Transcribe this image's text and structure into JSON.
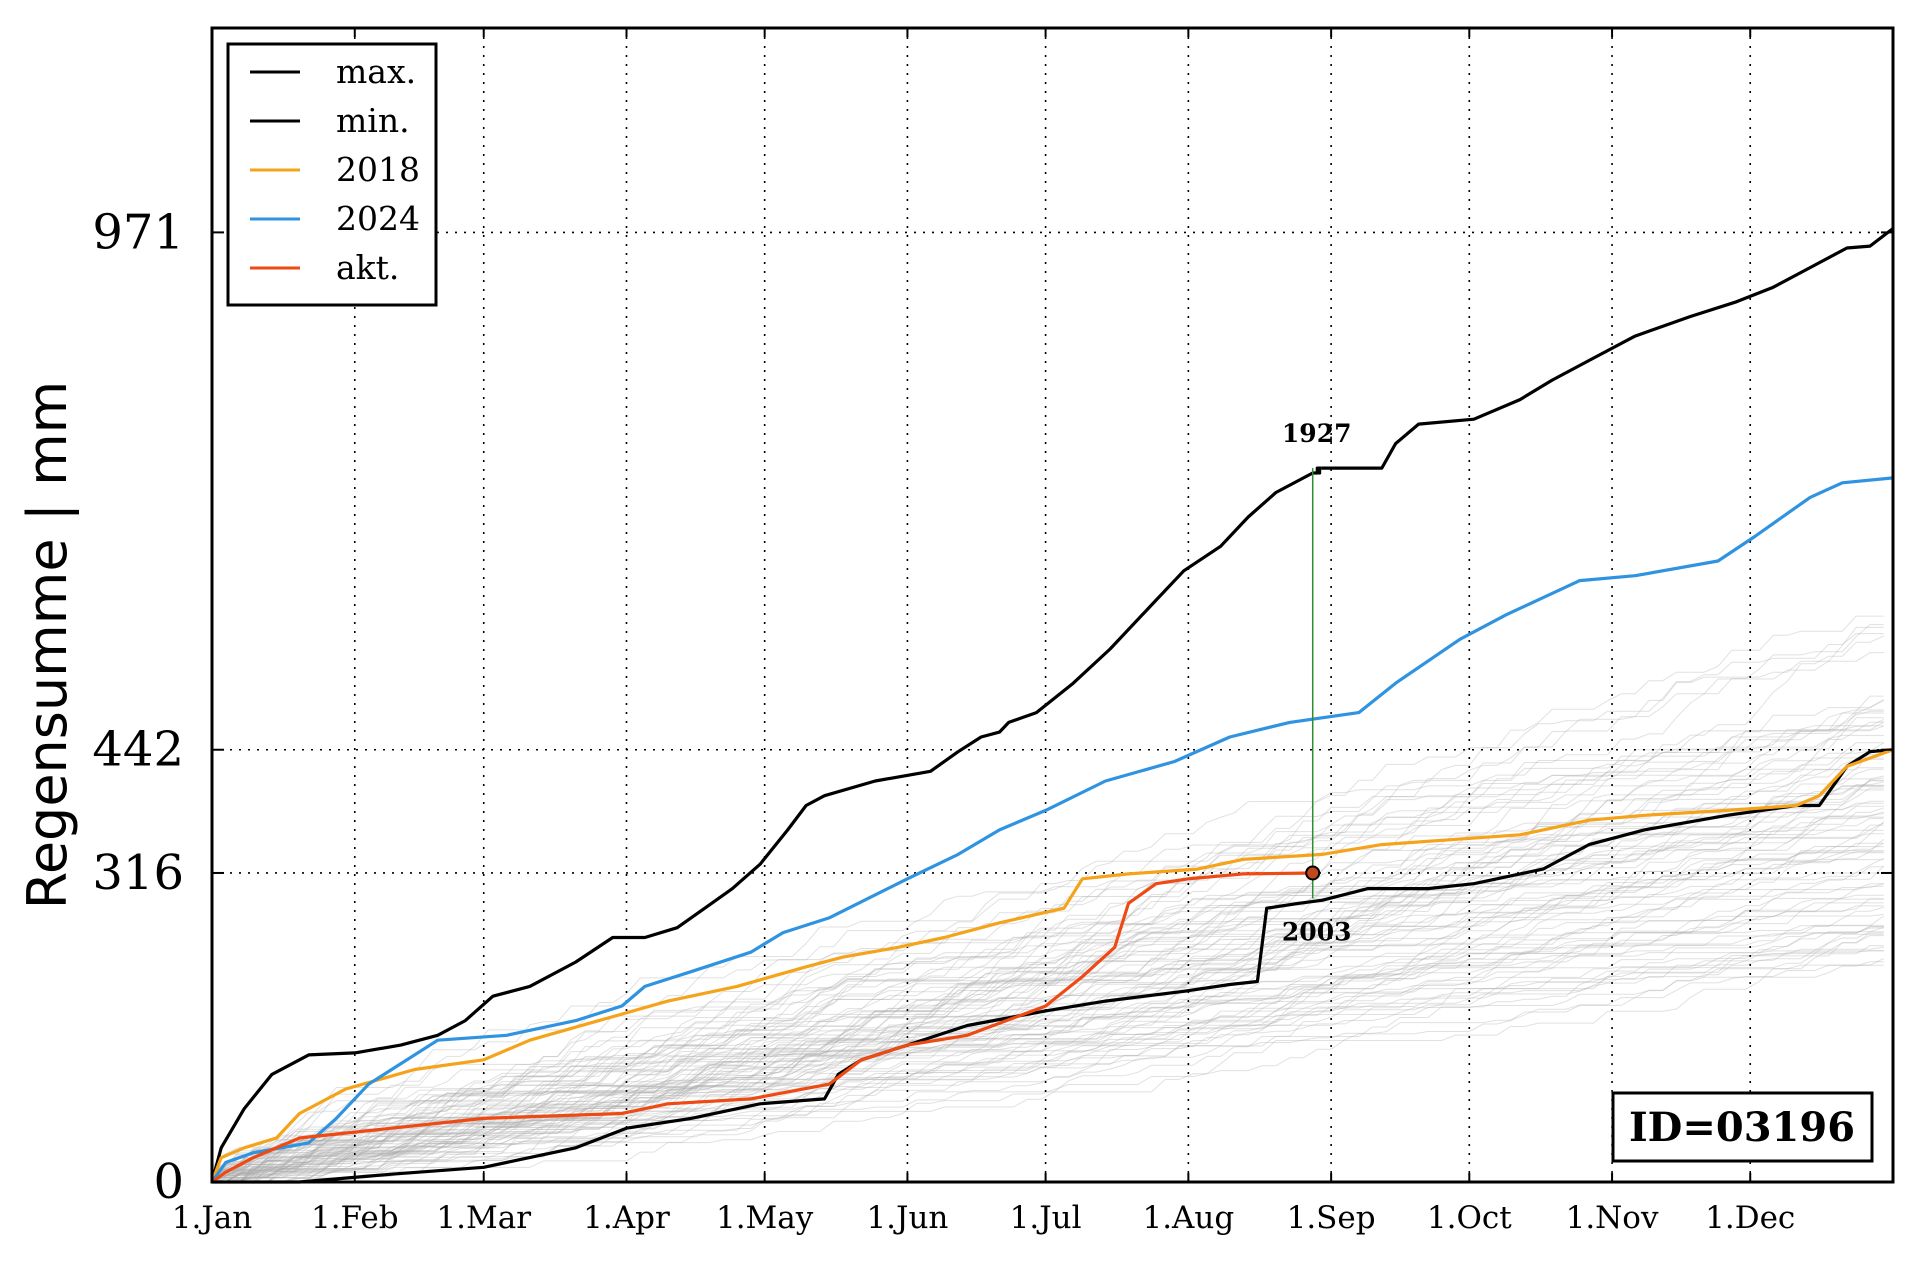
{
  "chart_data": {
    "type": "line",
    "ylabel": "Regensumme | mm",
    "xlabel": "",
    "xlim_day": [
      1,
      366
    ],
    "ylim": [
      0,
      1180
    ],
    "grid": true,
    "legend_position": "top-left",
    "x_ticks": [
      {
        "label": "1.Jan",
        "day": 1
      },
      {
        "label": "1.Feb",
        "day": 32
      },
      {
        "label": "1.Mar",
        "day": 60
      },
      {
        "label": "1.Apr",
        "day": 91
      },
      {
        "label": "1.May",
        "day": 121
      },
      {
        "label": "1.Jun",
        "day": 152
      },
      {
        "label": "1.Jul",
        "day": 182
      },
      {
        "label": "1.Aug",
        "day": 213
      },
      {
        "label": "1.Sep",
        "day": 244
      },
      {
        "label": "1.Oct",
        "day": 274
      },
      {
        "label": "1.Nov",
        "day": 305
      },
      {
        "label": "1.Dec",
        "day": 335
      }
    ],
    "y_ticks": [
      0,
      316,
      442,
      971
    ],
    "series": [
      {
        "name": "max.",
        "color": "#000000",
        "width": 3.2,
        "points": [
          [
            1,
            0
          ],
          [
            3,
            35
          ],
          [
            8,
            75
          ],
          [
            14,
            110
          ],
          [
            22,
            130
          ],
          [
            32,
            132
          ],
          [
            42,
            140
          ],
          [
            50,
            150
          ],
          [
            56,
            165
          ],
          [
            62,
            190
          ],
          [
            70,
            200
          ],
          [
            80,
            225
          ],
          [
            88,
            250
          ],
          [
            95,
            250
          ],
          [
            102,
            260
          ],
          [
            108,
            280
          ],
          [
            114,
            300
          ],
          [
            120,
            325
          ],
          [
            126,
            360
          ],
          [
            130,
            385
          ],
          [
            134,
            395
          ],
          [
            145,
            410
          ],
          [
            157,
            420
          ],
          [
            163,
            440
          ],
          [
            168,
            455
          ],
          [
            172,
            460
          ],
          [
            174,
            470
          ],
          [
            180,
            480
          ],
          [
            188,
            510
          ],
          [
            196,
            545
          ],
          [
            205,
            590
          ],
          [
            212,
            625
          ],
          [
            220,
            650
          ],
          [
            226,
            680
          ],
          [
            232,
            705
          ],
          [
            240,
            725
          ],
          [
            241,
            725
          ],
          [
            241,
            730
          ],
          [
            241.5,
            730
          ],
          [
            241.5,
            725
          ],
          [
            241.5,
            730
          ],
          [
            241.8,
            730
          ],
          [
            242,
            730
          ],
          [
            242,
            730
          ],
          [
            242,
            730
          ],
          [
            242,
            730
          ]
        ]
      },
      {
        "name": "max.",
        "color": "#000000",
        "width": 3.2,
        "points": [
          [
            242,
            730
          ],
          [
            255,
            730
          ],
          [
            258,
            755
          ],
          [
            263,
            775
          ],
          [
            275,
            780
          ],
          [
            285,
            800
          ],
          [
            292,
            820
          ],
          [
            300,
            840
          ],
          [
            310,
            865
          ],
          [
            322,
            885
          ],
          [
            332,
            900
          ],
          [
            340,
            915
          ],
          [
            348,
            935
          ],
          [
            356,
            955
          ],
          [
            361,
            957
          ],
          [
            366,
            975
          ]
        ]
      },
      {
        "name": "min.",
        "color": "#000000",
        "width": 3.2,
        "points": [
          [
            1,
            0
          ],
          [
            20,
            0
          ],
          [
            40,
            8
          ],
          [
            60,
            15
          ],
          [
            80,
            35
          ],
          [
            91,
            55
          ],
          [
            105,
            65
          ],
          [
            120,
            80
          ],
          [
            134,
            85
          ],
          [
            137,
            110
          ],
          [
            142,
            125
          ],
          [
            152,
            140
          ],
          [
            165,
            160
          ],
          [
            182,
            175
          ],
          [
            195,
            185
          ],
          [
            212,
            195
          ],
          [
            222,
            202
          ],
          [
            228,
            205
          ],
          [
            230,
            280
          ],
          [
            237,
            285
          ],
          [
            242,
            288
          ],
          [
            252,
            300
          ],
          [
            265,
            300
          ],
          [
            275,
            305
          ],
          [
            290,
            320
          ],
          [
            300,
            345
          ],
          [
            312,
            360
          ],
          [
            330,
            375
          ],
          [
            345,
            385
          ],
          [
            350,
            385
          ],
          [
            356,
            425
          ],
          [
            361,
            440
          ],
          [
            366,
            442
          ]
        ]
      },
      {
        "name": "2018",
        "color": "#F4A31B",
        "width": 3.2,
        "points": [
          [
            1,
            0
          ],
          [
            3,
            25
          ],
          [
            8,
            35
          ],
          [
            15,
            45
          ],
          [
            20,
            70
          ],
          [
            30,
            95
          ],
          [
            45,
            115
          ],
          [
            60,
            125
          ],
          [
            70,
            145
          ],
          [
            85,
            165
          ],
          [
            100,
            185
          ],
          [
            115,
            200
          ],
          [
            130,
            220
          ],
          [
            138,
            230
          ],
          [
            150,
            240
          ],
          [
            160,
            250
          ],
          [
            172,
            265
          ],
          [
            186,
            280
          ],
          [
            190,
            310
          ],
          [
            200,
            315
          ],
          [
            215,
            320
          ],
          [
            225,
            330
          ],
          [
            232,
            332
          ],
          [
            242,
            335
          ],
          [
            255,
            345
          ],
          [
            270,
            350
          ],
          [
            285,
            355
          ],
          [
            300,
            370
          ],
          [
            312,
            375
          ],
          [
            330,
            380
          ],
          [
            345,
            385
          ],
          [
            350,
            395
          ],
          [
            356,
            425
          ],
          [
            366,
            442
          ]
        ]
      },
      {
        "name": "2024",
        "color": "#2F93E0",
        "width": 3.2,
        "points": [
          [
            1,
            0
          ],
          [
            4,
            20
          ],
          [
            10,
            30
          ],
          [
            22,
            40
          ],
          [
            28,
            65
          ],
          [
            35,
            100
          ],
          [
            50,
            145
          ],
          [
            65,
            150
          ],
          [
            80,
            165
          ],
          [
            90,
            180
          ],
          [
            95,
            200
          ],
          [
            105,
            215
          ],
          [
            118,
            235
          ],
          [
            125,
            255
          ],
          [
            135,
            270
          ],
          [
            152,
            310
          ],
          [
            163,
            335
          ],
          [
            172,
            360
          ],
          [
            182,
            380
          ],
          [
            195,
            410
          ],
          [
            210,
            430
          ],
          [
            222,
            455
          ],
          [
            235,
            470
          ],
          [
            250,
            480
          ],
          [
            258,
            510
          ],
          [
            272,
            555
          ],
          [
            282,
            580
          ],
          [
            298,
            615
          ],
          [
            310,
            620
          ],
          [
            328,
            635
          ],
          [
            336,
            660
          ],
          [
            348,
            700
          ],
          [
            355,
            715
          ],
          [
            366,
            720
          ]
        ]
      },
      {
        "name": "akt.",
        "color": "#EE4A14",
        "width": 3.2,
        "points": [
          [
            1,
            0
          ],
          [
            4,
            10
          ],
          [
            10,
            25
          ],
          [
            20,
            45
          ],
          [
            40,
            55
          ],
          [
            60,
            65
          ],
          [
            90,
            70
          ],
          [
            100,
            80
          ],
          [
            118,
            85
          ],
          [
            135,
            100
          ],
          [
            142,
            125
          ],
          [
            152,
            140
          ],
          [
            165,
            150
          ],
          [
            182,
            180
          ],
          [
            190,
            210
          ],
          [
            197,
            240
          ],
          [
            200,
            285
          ],
          [
            206,
            305
          ],
          [
            213,
            310
          ],
          [
            225,
            315
          ],
          [
            240,
            316
          ]
        ]
      }
    ],
    "highlight": {
      "day": 240,
      "value": 316,
      "year_max": "1927",
      "year_min": "2003",
      "max_at_day": 730,
      "min_at_day": 290,
      "line_color": "#2E8B2E"
    },
    "legend": [
      {
        "label": "max.",
        "color": "#000000"
      },
      {
        "label": "min.",
        "color": "#000000"
      },
      {
        "label": "2018",
        "color": "#F4A31B"
      },
      {
        "label": "2024",
        "color": "#2F93E0"
      },
      {
        "label": "akt.",
        "color": "#EE4A14"
      }
    ],
    "station_label": "ID=03196",
    "background_series_color": "#A8A8A8"
  }
}
